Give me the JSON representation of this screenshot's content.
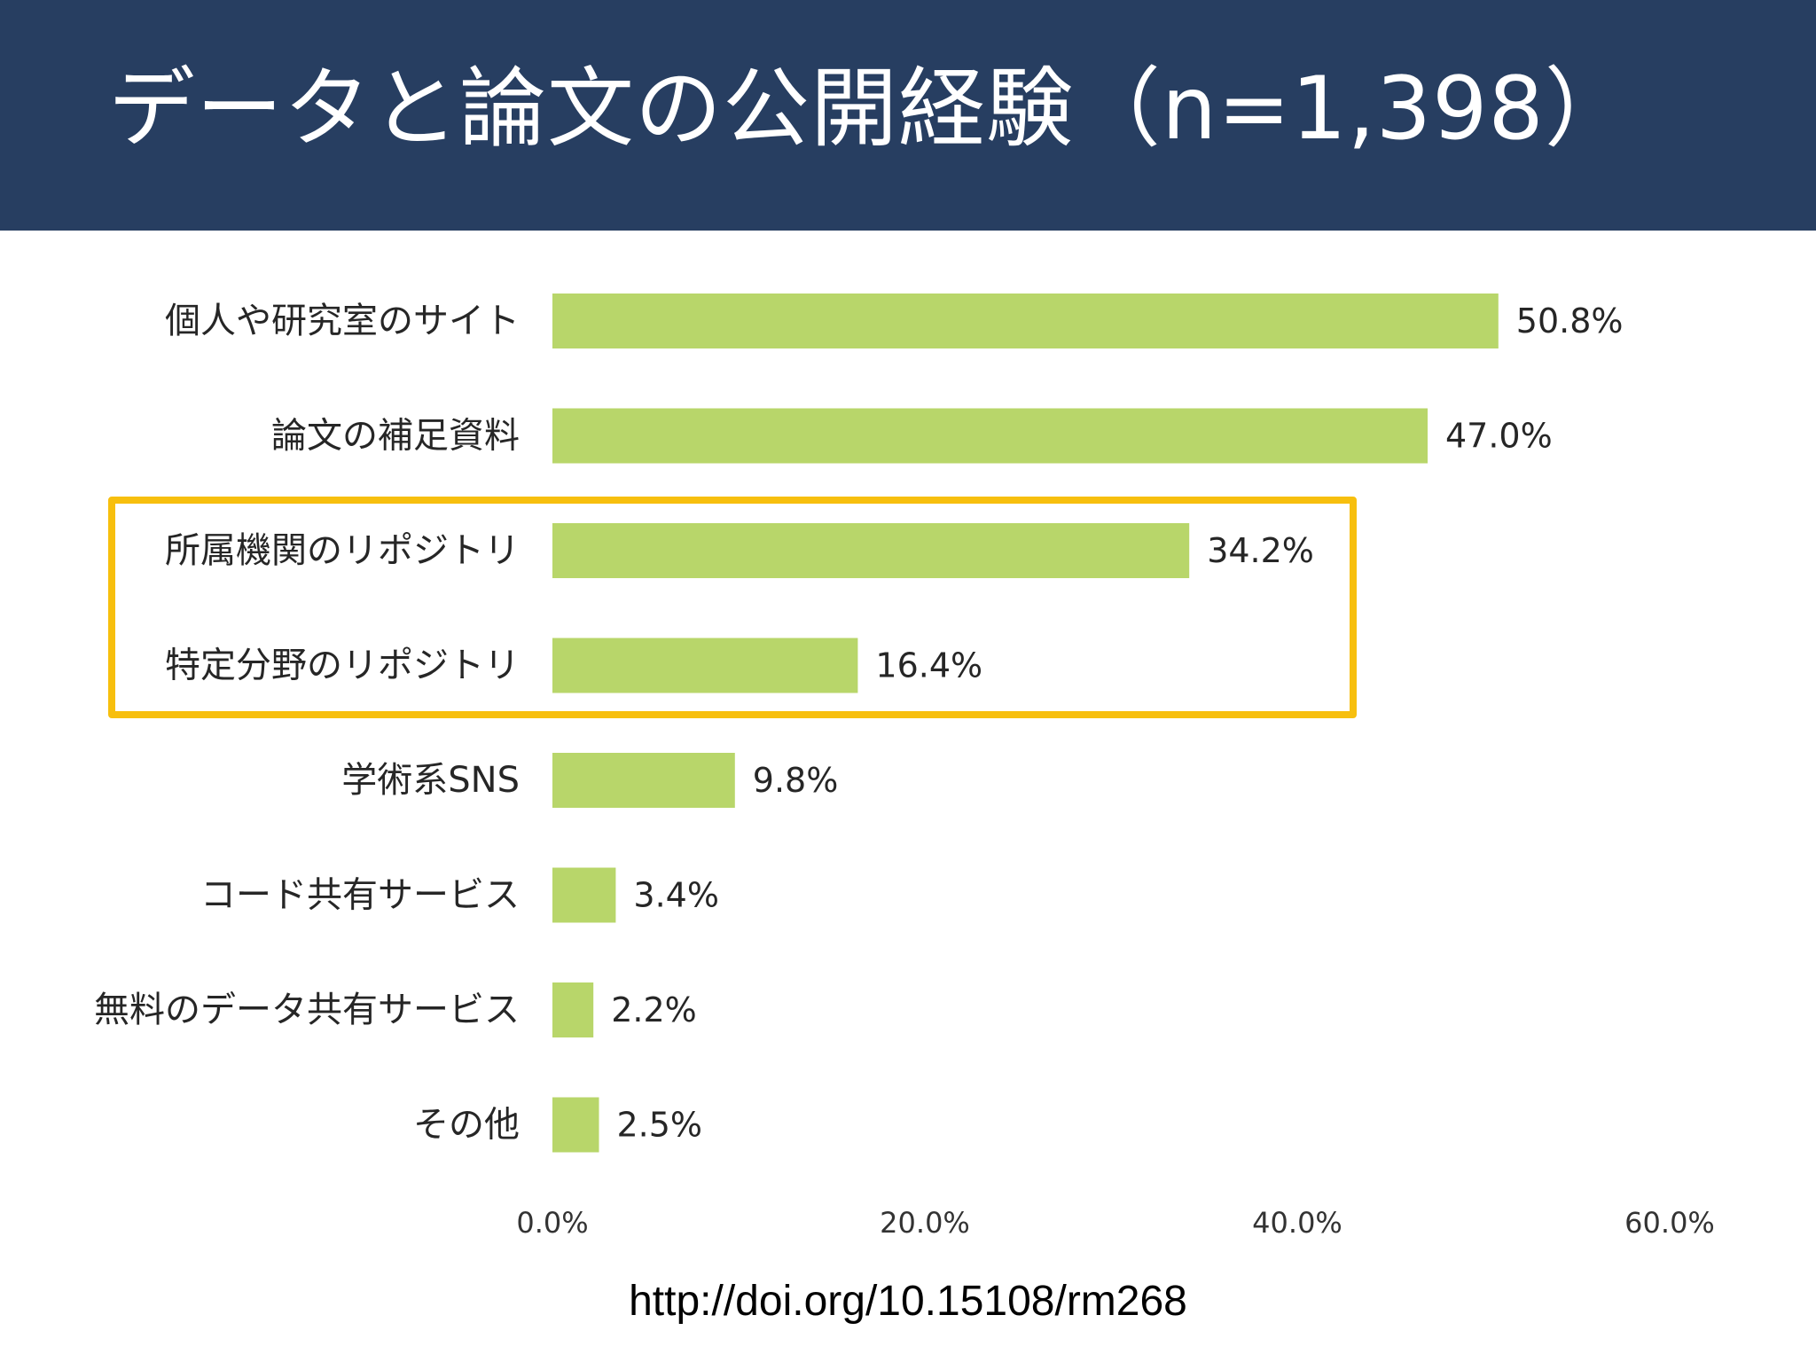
{
  "title": "データと論文の公開経験（n=1,398）",
  "source": "http://doi.org/10.15108/rm268",
  "colors": {
    "header_bg": "#273e61",
    "bar": "#b8d66a",
    "highlight": "#f7bf0e"
  },
  "chart_data": {
    "type": "bar",
    "orientation": "horizontal",
    "categories": [
      "個人や研究室のサイト",
      "論文の補足資料",
      "所属機関のリポジトリ",
      "特定分野のリポジトリ",
      "学術系SNS",
      "コード共有サービス",
      "無料のデータ共有サービス",
      "その他"
    ],
    "values": [
      50.8,
      47.0,
      34.2,
      16.4,
      9.8,
      3.4,
      2.2,
      2.5
    ],
    "value_labels": [
      "50.8%",
      "47.0%",
      "34.2%",
      "16.4%",
      "9.8%",
      "3.4%",
      "2.2%",
      "2.5%"
    ],
    "xlim": [
      0,
      60
    ],
    "xticks": [
      0,
      20,
      40,
      60
    ],
    "xtick_labels": [
      "0.0%",
      "20.0%",
      "40.0%",
      "60.0%"
    ],
    "grid": false,
    "highlighted_categories": [
      "所属機関のリポジトリ",
      "特定分野のリポジトリ"
    ]
  }
}
